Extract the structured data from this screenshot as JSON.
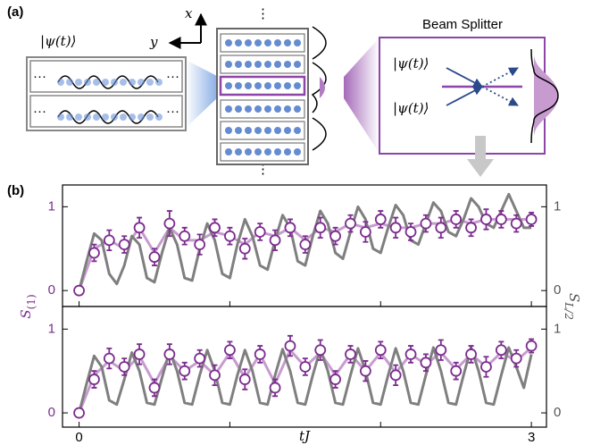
{
  "panel_a": {
    "label": "(a)",
    "axis_x": "x",
    "axis_y": "y",
    "state": "|ψ(t)⟩",
    "ellipsis": "···",
    "vdots": "⋮",
    "beam_splitter": "Beam Splitter"
  },
  "panel_b_label": "(b)",
  "chart_data": [
    {
      "type": "scatter",
      "ylabel": "S",
      "ylabel_sub": "(1)",
      "y2label": "S",
      "y2label_sub": "L/2",
      "x": [
        0,
        0.1,
        0.2,
        0.3,
        0.4,
        0.5,
        0.6,
        0.7,
        0.8,
        0.9,
        1,
        1.1,
        1.2,
        1.3,
        1.4,
        1.5,
        1.6,
        1.7,
        1.8,
        1.9,
        2,
        2.1,
        2.2,
        2.3,
        2.4,
        2.5,
        2.6,
        2.7,
        2.8,
        2.9,
        3
      ],
      "series": [
        {
          "kind": "points",
          "color": "#7b2d8e",
          "values": [
            0,
            0.45,
            0.6,
            0.55,
            0.75,
            0.4,
            0.8,
            0.65,
            0.55,
            0.75,
            0.65,
            0.5,
            0.7,
            0.6,
            0.75,
            0.55,
            0.75,
            0.65,
            0.8,
            0.7,
            0.85,
            0.75,
            0.7,
            0.8,
            0.75,
            0.85,
            0.75,
            0.85,
            0.85,
            0.8,
            0.85
          ],
          "errors": [
            0.03,
            0.1,
            0.12,
            0.1,
            0.12,
            0.1,
            0.15,
            0.1,
            0.12,
            0.1,
            0.1,
            0.12,
            0.1,
            0.12,
            0.1,
            0.1,
            0.12,
            0.1,
            0.1,
            0.12,
            0.1,
            0.12,
            0.1,
            0.1,
            0.12,
            0.1,
            0.1,
            0.12,
            0.1,
            0.1,
            0.08
          ]
        },
        {
          "kind": "line",
          "color": "#c79bd0",
          "values": [
            0,
            0.5,
            0.6,
            0.5,
            0.75,
            0.45,
            0.75,
            0.6,
            0.6,
            0.7,
            0.65,
            0.55,
            0.7,
            0.65,
            0.75,
            0.6,
            0.75,
            0.7,
            0.8,
            0.75,
            0.8,
            0.75,
            0.75,
            0.8,
            0.8,
            0.85,
            0.8,
            0.85,
            0.85,
            0.85,
            0.85
          ]
        },
        {
          "kind": "line",
          "axis": "y2",
          "color": "#7f7f7f",
          "x": [
            0,
            0.05,
            0.1,
            0.15,
            0.2,
            0.25,
            0.3,
            0.35,
            0.4,
            0.45,
            0.5,
            0.55,
            0.6,
            0.65,
            0.7,
            0.75,
            0.8,
            0.85,
            0.9,
            0.95,
            1,
            1.05,
            1.1,
            1.15,
            1.2,
            1.25,
            1.3,
            1.35,
            1.4,
            1.45,
            1.5,
            1.55,
            1.6,
            1.65,
            1.7,
            1.75,
            1.8,
            1.85,
            1.9,
            1.95,
            2,
            2.05,
            2.1,
            2.15,
            2.2,
            2.25,
            2.3,
            2.35,
            2.4,
            2.45,
            2.5,
            2.55,
            2.6,
            2.65,
            2.7,
            2.75,
            2.8,
            2.85,
            2.9,
            2.95,
            3
          ],
          "values": [
            0,
            0.35,
            0.68,
            0.6,
            0.2,
            0.08,
            0.3,
            0.65,
            0.55,
            0.15,
            0.1,
            0.45,
            0.75,
            0.55,
            0.15,
            0.12,
            0.5,
            0.8,
            0.6,
            0.2,
            0.15,
            0.55,
            0.85,
            0.65,
            0.3,
            0.25,
            0.6,
            0.9,
            0.75,
            0.35,
            0.3,
            0.65,
            0.95,
            0.8,
            0.45,
            0.38,
            0.7,
            1.0,
            0.85,
            0.5,
            0.45,
            0.75,
            1.02,
            0.9,
            0.6,
            0.55,
            0.8,
            1.05,
            0.95,
            0.7,
            0.65,
            0.85,
            1.1,
            1.0,
            0.8,
            0.75,
            0.95,
            1.15,
            0.95,
            0.75,
            0.75
          ]
        }
      ],
      "xlim": [
        -0.11,
        3.1
      ],
      "xticks": [
        0,
        3
      ],
      "xminorticks": [
        1,
        2
      ],
      "ylim": [
        -0.19,
        1.26
      ],
      "yticks": [
        0,
        1
      ],
      "y2lim": [
        -0.19,
        1.26
      ],
      "y2ticks": [
        0,
        1
      ]
    },
    {
      "type": "scatter",
      "xlabel": "tJ",
      "x": [
        0,
        0.1,
        0.2,
        0.3,
        0.4,
        0.5,
        0.6,
        0.7,
        0.8,
        0.9,
        1,
        1.1,
        1.2,
        1.3,
        1.4,
        1.5,
        1.6,
        1.7,
        1.8,
        1.9,
        2,
        2.1,
        2.2,
        2.3,
        2.4,
        2.5,
        2.6,
        2.7,
        2.8,
        2.9,
        3
      ],
      "series": [
        {
          "kind": "points",
          "color": "#7b2d8e",
          "values": [
            0,
            0.4,
            0.65,
            0.55,
            0.7,
            0.3,
            0.7,
            0.5,
            0.65,
            0.45,
            0.75,
            0.4,
            0.7,
            0.3,
            0.8,
            0.55,
            0.75,
            0.4,
            0.7,
            0.5,
            0.75,
            0.45,
            0.7,
            0.6,
            0.75,
            0.5,
            0.7,
            0.55,
            0.75,
            0.65,
            0.8
          ],
          "errors": [
            0.03,
            0.1,
            0.12,
            0.1,
            0.12,
            0.1,
            0.12,
            0.1,
            0.1,
            0.12,
            0.1,
            0.12,
            0.1,
            0.1,
            0.12,
            0.1,
            0.12,
            0.1,
            0.1,
            0.12,
            0.1,
            0.12,
            0.1,
            0.1,
            0.12,
            0.1,
            0.1,
            0.12,
            0.1,
            0.1,
            0.08
          ]
        },
        {
          "kind": "line",
          "color": "#c79bd0",
          "values": [
            0,
            0.45,
            0.62,
            0.5,
            0.68,
            0.35,
            0.68,
            0.5,
            0.62,
            0.45,
            0.72,
            0.42,
            0.7,
            0.35,
            0.75,
            0.55,
            0.72,
            0.45,
            0.7,
            0.5,
            0.72,
            0.48,
            0.7,
            0.58,
            0.72,
            0.52,
            0.7,
            0.55,
            0.72,
            0.62,
            0.78
          ]
        },
        {
          "kind": "line",
          "axis": "y2",
          "color": "#7f7f7f",
          "x": [
            0,
            0.05,
            0.1,
            0.15,
            0.2,
            0.25,
            0.3,
            0.35,
            0.4,
            0.45,
            0.5,
            0.55,
            0.6,
            0.65,
            0.7,
            0.75,
            0.8,
            0.85,
            0.9,
            0.95,
            1,
            1.05,
            1.1,
            1.15,
            1.2,
            1.25,
            1.3,
            1.35,
            1.4,
            1.45,
            1.5,
            1.55,
            1.6,
            1.65,
            1.7,
            1.75,
            1.8,
            1.85,
            1.9,
            1.95,
            2,
            2.05,
            2.1,
            2.15,
            2.2,
            2.25,
            2.3,
            2.35,
            2.4,
            2.45,
            2.5,
            2.55,
            2.6,
            2.65,
            2.7,
            2.75,
            2.8,
            2.85,
            2.9,
            2.95,
            3
          ],
          "values": [
            0,
            0.35,
            0.68,
            0.55,
            0.15,
            0.1,
            0.4,
            0.72,
            0.5,
            0.12,
            0.1,
            0.42,
            0.74,
            0.5,
            0.12,
            0.1,
            0.45,
            0.75,
            0.5,
            0.12,
            0.1,
            0.45,
            0.75,
            0.5,
            0.12,
            0.1,
            0.45,
            0.76,
            0.5,
            0.12,
            0.1,
            0.45,
            0.76,
            0.5,
            0.12,
            0.1,
            0.45,
            0.77,
            0.5,
            0.12,
            0.1,
            0.45,
            0.77,
            0.5,
            0.12,
            0.1,
            0.45,
            0.78,
            0.5,
            0.12,
            0.1,
            0.45,
            0.78,
            0.5,
            0.12,
            0.1,
            0.45,
            0.78,
            0.55,
            0.3,
            0.7
          ]
        }
      ],
      "xlim": [
        -0.11,
        3.1
      ],
      "xticks": [
        0,
        3
      ],
      "xminorticks": [
        1,
        2
      ],
      "ylim": [
        -0.17,
        1.27
      ],
      "yticks": [
        0,
        1
      ],
      "y2lim": [
        -0.17,
        1.27
      ],
      "y2ticks": [
        0,
        1
      ]
    }
  ]
}
